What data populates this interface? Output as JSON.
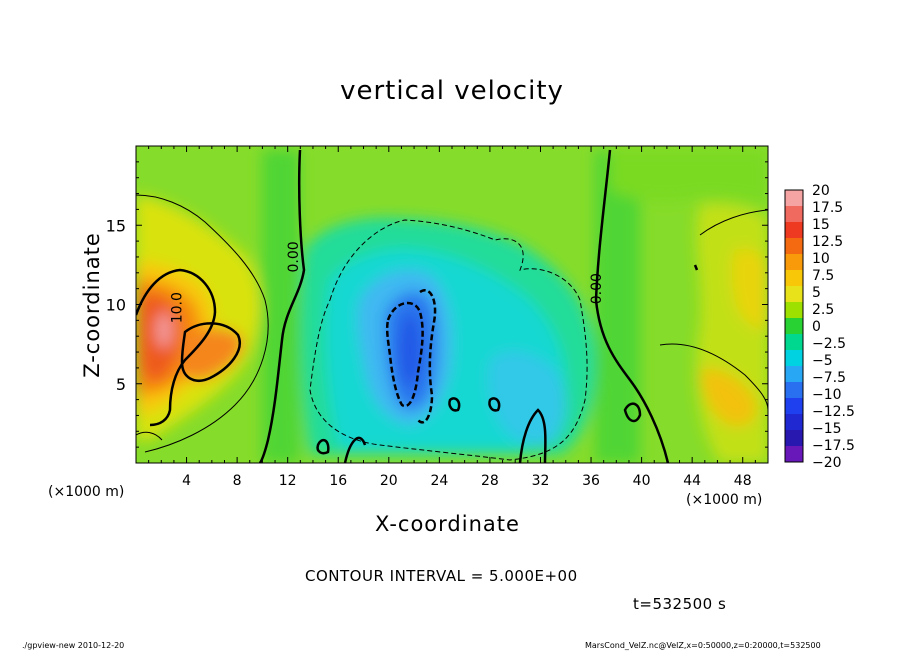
{
  "chart_data": {
    "type": "heatmap",
    "title": "vertical velocity",
    "xlabel": "X-coordinate",
    "ylabel": "Z-coordinate",
    "x_unit_label_left": "(×1000 m)",
    "x_unit_label_right": "(×1000 m)",
    "xlim": [
      0,
      50
    ],
    "ylim": [
      0,
      20
    ],
    "x_ticks": [
      4,
      8,
      12,
      16,
      20,
      24,
      28,
      32,
      36,
      40,
      44,
      48
    ],
    "y_ticks": [
      5,
      10,
      15
    ],
    "colorbar": {
      "levels": [
        20,
        17.5,
        15,
        12.5,
        10,
        7.5,
        5,
        2.5,
        0,
        -2.5,
        -5,
        -7.5,
        -10,
        -12.5,
        -15,
        -17.5,
        -20
      ],
      "labels": [
        "20",
        "17.5",
        "15",
        "12.5",
        "10",
        "7.5",
        "5",
        "2.5",
        "0",
        "−2.5",
        "−5",
        "−7.5",
        "−10",
        "−12.5",
        "−15",
        "−17.5",
        "−20"
      ],
      "colors": [
        "#f5a3a3",
        "#f06a60",
        "#ee3a20",
        "#f46a10",
        "#f89a0a",
        "#f8c808",
        "#e8e21a",
        "#9ee000",
        "#28d232",
        "#00d890",
        "#00d2e2",
        "#28a8f4",
        "#2870f0",
        "#1e40ee",
        "#2028d2",
        "#2818b0",
        "#6818b8"
      ]
    },
    "contour_labels": [
      {
        "text": "10.0",
        "x": 3.6,
        "y": 9.8
      },
      {
        "text": "0.00",
        "x": 12.8,
        "y": 13.0
      },
      {
        "text": "0.00",
        "x": 36.8,
        "y": 11.0
      }
    ],
    "contour_interval": "CONTOUR INTERVAL = 5.000E+00",
    "time": "t=532500 s"
  },
  "footer": {
    "left": "./gpview-new  2010-12-20",
    "right": "MarsCond_VelZ.nc@VelZ,x=0:50000,z=0:20000,t=532500"
  }
}
